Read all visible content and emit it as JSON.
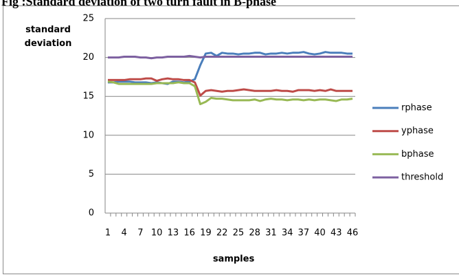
{
  "chart_data": {
    "type": "line",
    "title": "Fig :Standard deviation of two turn fault in B-phase",
    "y_label": "standard deviation",
    "x_label": "samples",
    "categories": [
      1,
      null,
      null,
      4,
      null,
      null,
      7,
      null,
      null,
      10,
      null,
      null,
      13,
      null,
      null,
      16,
      null,
      null,
      19,
      null,
      null,
      22,
      null,
      null,
      25,
      null,
      null,
      28,
      null,
      null,
      31,
      null,
      null,
      34,
      null,
      null,
      37,
      null,
      null,
      40,
      null,
      null,
      43,
      null,
      null,
      46
    ],
    "series": [
      {
        "name": "rphase",
        "color": "#4a7ebb",
        "values": [
          16.8,
          16.8,
          16.9,
          16.9,
          16.9,
          16.8,
          16.8,
          16.8,
          16.7,
          16.8,
          16.7,
          16.6,
          16.9,
          16.9,
          16.8,
          16.9,
          17.2,
          19.0,
          20.5,
          20.6,
          20.2,
          20.6,
          20.5,
          20.5,
          20.4,
          20.5,
          20.5,
          20.6,
          20.6,
          20.4,
          20.5,
          20.5,
          20.6,
          20.5,
          20.6,
          20.6,
          20.7,
          20.5,
          20.4,
          20.5,
          20.7,
          20.6,
          20.6,
          20.6,
          20.5,
          20.5
        ]
      },
      {
        "name": "yphase",
        "color": "#be4b48",
        "values": [
          17.1,
          17.1,
          17.1,
          17.1,
          17.2,
          17.2,
          17.2,
          17.3,
          17.3,
          17.0,
          17.2,
          17.3,
          17.2,
          17.2,
          17.1,
          17.1,
          16.8,
          15.1,
          15.7,
          15.8,
          15.7,
          15.6,
          15.7,
          15.7,
          15.8,
          15.9,
          15.8,
          15.7,
          15.7,
          15.7,
          15.7,
          15.8,
          15.7,
          15.7,
          15.6,
          15.8,
          15.8,
          15.8,
          15.7,
          15.8,
          15.7,
          15.9,
          15.7,
          15.7,
          15.7,
          15.7
        ]
      },
      {
        "name": "bphase",
        "color": "#98b954",
        "values": [
          16.9,
          16.8,
          16.6,
          16.6,
          16.6,
          16.6,
          16.6,
          16.6,
          16.6,
          16.7,
          16.7,
          16.7,
          16.7,
          16.8,
          16.7,
          16.7,
          16.3,
          14.0,
          14.3,
          14.8,
          14.7,
          14.7,
          14.6,
          14.5,
          14.5,
          14.5,
          14.5,
          14.6,
          14.4,
          14.6,
          14.7,
          14.6,
          14.6,
          14.5,
          14.6,
          14.6,
          14.5,
          14.6,
          14.5,
          14.6,
          14.6,
          14.5,
          14.4,
          14.6,
          14.6,
          14.7
        ]
      },
      {
        "name": "threshold",
        "color": "#7d60a0",
        "values": [
          20.0,
          20.0,
          20.0,
          20.1,
          20.1,
          20.1,
          20.0,
          20.0,
          19.9,
          20.0,
          20.0,
          20.1,
          20.1,
          20.1,
          20.1,
          20.2,
          20.1,
          20.0,
          20.1,
          20.1,
          20.1,
          20.1,
          20.1,
          20.1,
          20.1,
          20.1,
          20.1,
          20.1,
          20.1,
          20.1,
          20.1,
          20.1,
          20.1,
          20.1,
          20.1,
          20.1,
          20.1,
          20.1,
          20.1,
          20.1,
          20.1,
          20.1,
          20.1,
          20.1,
          20.1,
          20.1
        ]
      }
    ],
    "ylim": [
      0,
      25
    ],
    "yticks": [
      0,
      5,
      10,
      15,
      20,
      25
    ],
    "grid": true,
    "legend": "right"
  }
}
